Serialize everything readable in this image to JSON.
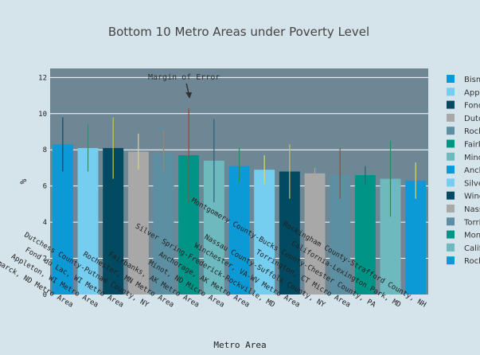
{
  "chart_data": {
    "type": "bar",
    "title": "Bottom 10 Metro Areas under Poverty Level",
    "xlabel": "Metro Area",
    "ylabel": "%",
    "ylim": [
      0,
      12.5
    ],
    "yticks": [
      0,
      2,
      4,
      6,
      8,
      10,
      12
    ],
    "grid": true,
    "legend_position": "right",
    "annotation": "Margin of Error",
    "categories": [
      "Bismarck, ND Metro Area",
      "Appleton, WI Metro Area",
      "Fond du Lac, WI Metro Area",
      "Dutchess County-Putnam County, NY",
      "Rochester, MN Metro Area",
      "Fairbanks, AK Metro Area",
      "Minot, ND Micro Area",
      "Anchorage, AK Metro Area",
      "Silver Spring-Frederick-Rockville, MD",
      "Winchester, VA-WV Metro Area",
      "Nassau County-Suffolk County, NY",
      "Torrington, CT Micro Area",
      "Montgomery County-Bucks County-Chester County, PA",
      "California-Lexington Park, MD",
      "Rockingham County-Strafford County, NH"
    ],
    "legend_labels": [
      "Bismarck",
      "Appleton",
      "Fond du Lac",
      "Dutchess",
      "Rochester",
      "Fairbanks",
      "Minot",
      "Anchorage",
      "Silver Spring",
      "Winchester",
      "Nassau",
      "Torrington",
      "Montgomery",
      "California",
      "Rockingham"
    ],
    "values": [
      8.3,
      8.1,
      8.1,
      7.9,
      7.8,
      7.7,
      7.4,
      7.1,
      6.9,
      6.8,
      6.7,
      6.6,
      6.6,
      6.4,
      6.3
    ],
    "error_low": [
      6.8,
      6.8,
      6.4,
      6.9,
      6.8,
      5.1,
      5.1,
      6.2,
      6.1,
      5.3,
      6.4,
      5.3,
      6.1,
      4.3,
      5.3
    ],
    "error_high": [
      9.8,
      9.4,
      9.8,
      8.9,
      9.1,
      10.3,
      9.7,
      8.1,
      7.7,
      8.3,
      7.0,
      8.1,
      7.1,
      8.5,
      7.3
    ],
    "colors": [
      "#0c9ad6",
      "#75cdf0",
      "#024a62",
      "#a9a8a8",
      "#5d8fa3",
      "#009487",
      "#6db9be",
      "#0c9ad6",
      "#75cdf0",
      "#024a62",
      "#a9a8a8",
      "#5d8fa3",
      "#009487",
      "#6db9be",
      "#0c9ad6"
    ],
    "error_colors": [
      "#0c4b6b",
      "#3a8a6a",
      "#c8c846",
      "#d8d870",
      "#c87a3a",
      "#a8413c",
      "#24607a",
      "#2a8a5a",
      "#d8d870",
      "#c8c846",
      "#d89a5a",
      "#a8413c",
      "#24607a",
      "#2a8a5a",
      "#d8d870"
    ]
  }
}
